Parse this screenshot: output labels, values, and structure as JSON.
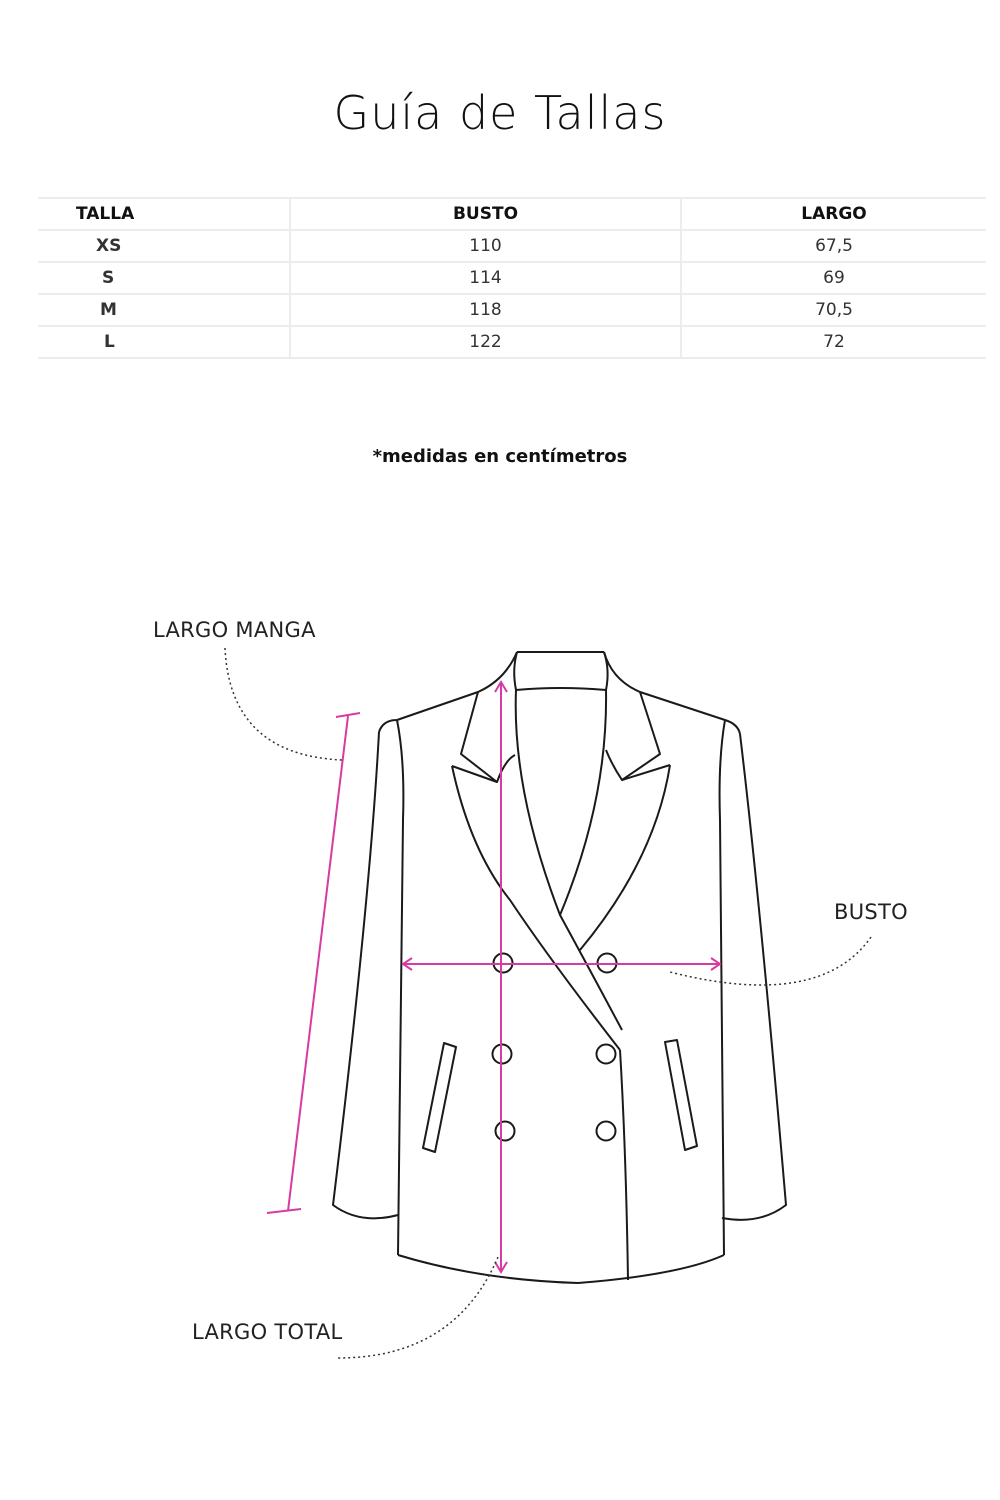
{
  "title": "Guía de Tallas",
  "table": {
    "headers": [
      "TALLA",
      "BUSTO",
      "LARGO"
    ],
    "rows": [
      [
        "XS",
        "110",
        "67,5"
      ],
      [
        "S",
        "114",
        "69"
      ],
      [
        "M",
        "118",
        "70,5"
      ],
      [
        "L",
        "122",
        "72"
      ]
    ]
  },
  "note": "*medidas en centímetros",
  "diagram": {
    "labels": {
      "sleeve": "LARGO MANGA",
      "bust": "BUSTO",
      "length": "LARGO TOTAL"
    },
    "colors": {
      "measure_line": "#d63ba3",
      "outline": "#1a1a1a"
    }
  }
}
